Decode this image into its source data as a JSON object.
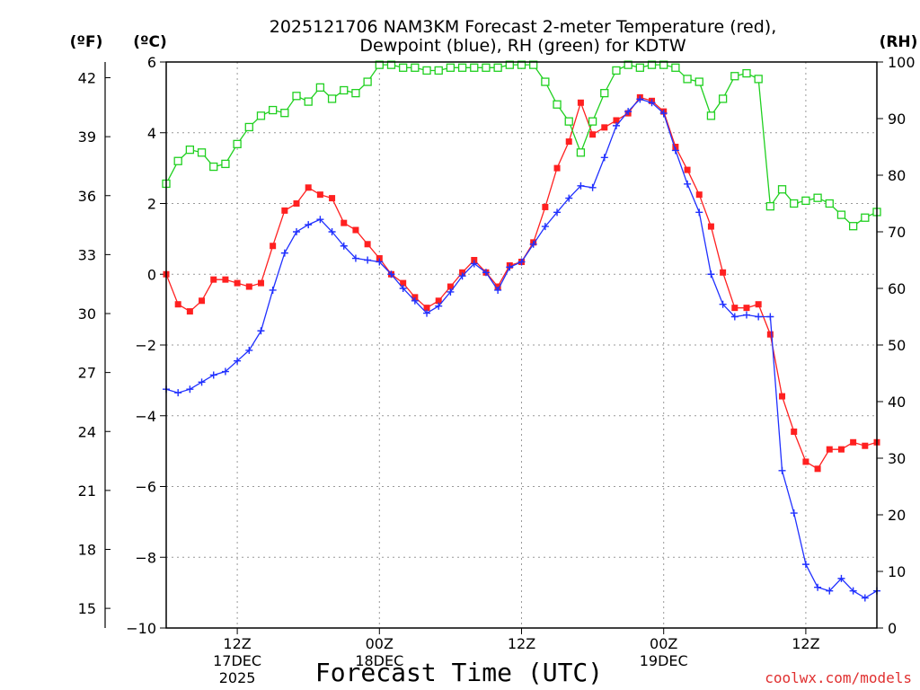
{
  "chart_data": {
    "type": "line",
    "title_line1": "2025121706 NAM3KM Forecast 2-meter Temperature (red),",
    "title_line2": "Dewpoint (blue), RH (green) for KDTW",
    "xlabel": "Forecast Time (UTC)",
    "credit": "coolwx.com/models",
    "left_f_axis": {
      "unit_label": "(ºF)",
      "ticks": [
        15,
        18,
        21,
        24,
        27,
        30,
        33,
        36,
        39,
        42
      ]
    },
    "left_c_axis": {
      "unit_label": "(ºC)",
      "ylim": [
        -10,
        6
      ],
      "ticks": [
        -10,
        -8,
        -6,
        -4,
        -2,
        0,
        2,
        4,
        6
      ],
      "tick_labels": [
        "−10",
        "−8",
        "−6",
        "−4",
        "−2",
        "0",
        "2",
        "4",
        "6"
      ]
    },
    "right_rh_axis": {
      "unit_label": "(RH)",
      "ylim": [
        0,
        100
      ],
      "ticks": [
        0,
        10,
        20,
        30,
        40,
        50,
        60,
        70,
        80,
        90,
        100
      ]
    },
    "x_axis": {
      "range_hours": [
        0,
        60
      ],
      "ticks": [
        {
          "hour": 6,
          "line1": "12Z",
          "line2": "17DEC",
          "line3": "2025"
        },
        {
          "hour": 18,
          "line1": "00Z",
          "line2": "18DEC",
          "line3": ""
        },
        {
          "hour": 30,
          "line1": "12Z",
          "line2": "",
          "line3": ""
        },
        {
          "hour": 42,
          "line1": "00Z",
          "line2": "19DEC",
          "line3": ""
        },
        {
          "hour": 54,
          "line1": "12Z",
          "line2": "",
          "line3": ""
        }
      ]
    },
    "grid": true,
    "series": [
      {
        "name": "Temperature",
        "unit": "C",
        "color": "#ff2020",
        "marker": "filled-square",
        "hours": [
          0,
          1,
          2,
          3,
          4,
          5,
          6,
          7,
          8,
          9,
          10,
          11,
          12,
          13,
          14,
          15,
          16,
          17,
          18,
          19,
          20,
          21,
          22,
          23,
          24,
          25,
          26,
          27,
          28,
          29,
          30,
          31,
          32,
          33,
          34,
          35,
          36,
          37,
          38,
          39,
          40,
          41,
          42,
          43,
          44,
          45,
          46,
          47,
          48,
          49,
          50,
          51,
          52,
          53,
          54,
          55,
          56,
          57,
          58,
          59,
          60
        ],
        "values": [
          0.0,
          -0.85,
          -1.05,
          -0.75,
          -0.15,
          -0.15,
          -0.25,
          -0.35,
          -0.25,
          0.8,
          1.8,
          2.0,
          2.45,
          2.25,
          2.15,
          1.45,
          1.25,
          0.85,
          0.45,
          0.0,
          -0.25,
          -0.65,
          -0.95,
          -0.75,
          -0.35,
          0.05,
          0.4,
          0.05,
          -0.35,
          0.25,
          0.35,
          0.9,
          1.9,
          3.0,
          3.75,
          4.85,
          3.95,
          4.15,
          4.35,
          4.55,
          5.0,
          4.9,
          4.6,
          3.6,
          2.95,
          2.25,
          1.35,
          0.05,
          -0.95,
          -0.95,
          -0.85,
          -1.7,
          -3.45,
          -4.45,
          -5.3,
          -5.5,
          -4.95,
          -4.95,
          -4.75,
          -4.85,
          -4.75
        ]
      },
      {
        "name": "Dewpoint",
        "unit": "C",
        "color": "#2030ff",
        "marker": "plus",
        "hours": [
          0,
          1,
          2,
          3,
          4,
          5,
          6,
          7,
          8,
          9,
          10,
          11,
          12,
          13,
          14,
          15,
          16,
          17,
          18,
          19,
          20,
          21,
          22,
          23,
          24,
          25,
          26,
          27,
          28,
          29,
          30,
          31,
          32,
          33,
          34,
          35,
          36,
          37,
          38,
          39,
          40,
          41,
          42,
          43,
          44,
          45,
          46,
          47,
          48,
          49,
          50,
          51,
          52,
          53,
          54,
          55,
          56,
          57,
          58,
          59,
          60
        ],
        "values": [
          -3.25,
          -3.35,
          -3.25,
          -3.05,
          -2.85,
          -2.75,
          -2.45,
          -2.15,
          -1.6,
          -0.45,
          0.6,
          1.2,
          1.4,
          1.55,
          1.2,
          0.8,
          0.45,
          0.4,
          0.35,
          0.0,
          -0.4,
          -0.75,
          -1.1,
          -0.9,
          -0.5,
          -0.05,
          0.3,
          0.05,
          -0.45,
          0.2,
          0.35,
          0.85,
          1.35,
          1.75,
          2.15,
          2.5,
          2.45,
          3.3,
          4.2,
          4.6,
          4.95,
          4.85,
          4.55,
          3.5,
          2.55,
          1.75,
          0.0,
          -0.85,
          -1.2,
          -1.15,
          -1.2,
          -1.2,
          -5.55,
          -6.75,
          -8.2,
          -8.85,
          -8.95,
          -8.6,
          -8.95,
          -9.15,
          -8.95
        ]
      },
      {
        "name": "Relative Humidity",
        "unit": "%",
        "color": "#20d020",
        "marker": "open-square",
        "hours": [
          0,
          1,
          2,
          3,
          4,
          5,
          6,
          7,
          8,
          9,
          10,
          11,
          12,
          13,
          14,
          15,
          16,
          17,
          18,
          19,
          20,
          21,
          22,
          23,
          24,
          25,
          26,
          27,
          28,
          29,
          30,
          31,
          32,
          33,
          34,
          35,
          36,
          37,
          38,
          39,
          40,
          41,
          42,
          43,
          44,
          45,
          46,
          47,
          48,
          49,
          50,
          51,
          52,
          53,
          54,
          55,
          56,
          57,
          58,
          59,
          60
        ],
        "values": [
          78.5,
          82.5,
          84.5,
          84.0,
          81.5,
          82.0,
          85.5,
          88.5,
          90.5,
          91.5,
          91.0,
          94.0,
          93.0,
          95.5,
          93.5,
          95.0,
          94.5,
          96.5,
          99.5,
          99.5,
          99.0,
          99.0,
          98.5,
          98.5,
          99.0,
          99.0,
          99.0,
          99.0,
          99.0,
          99.5,
          99.5,
          99.5,
          96.5,
          92.5,
          89.5,
          84.0,
          89.5,
          94.5,
          98.5,
          99.5,
          99.0,
          99.5,
          99.5,
          99.0,
          97.0,
          96.5,
          90.5,
          93.5,
          97.5,
          98.0,
          97.0,
          74.5,
          77.5,
          75.0,
          75.5,
          76.0,
          75.0,
          73.0,
          71.0,
          72.5,
          73.5
        ]
      }
    ]
  }
}
